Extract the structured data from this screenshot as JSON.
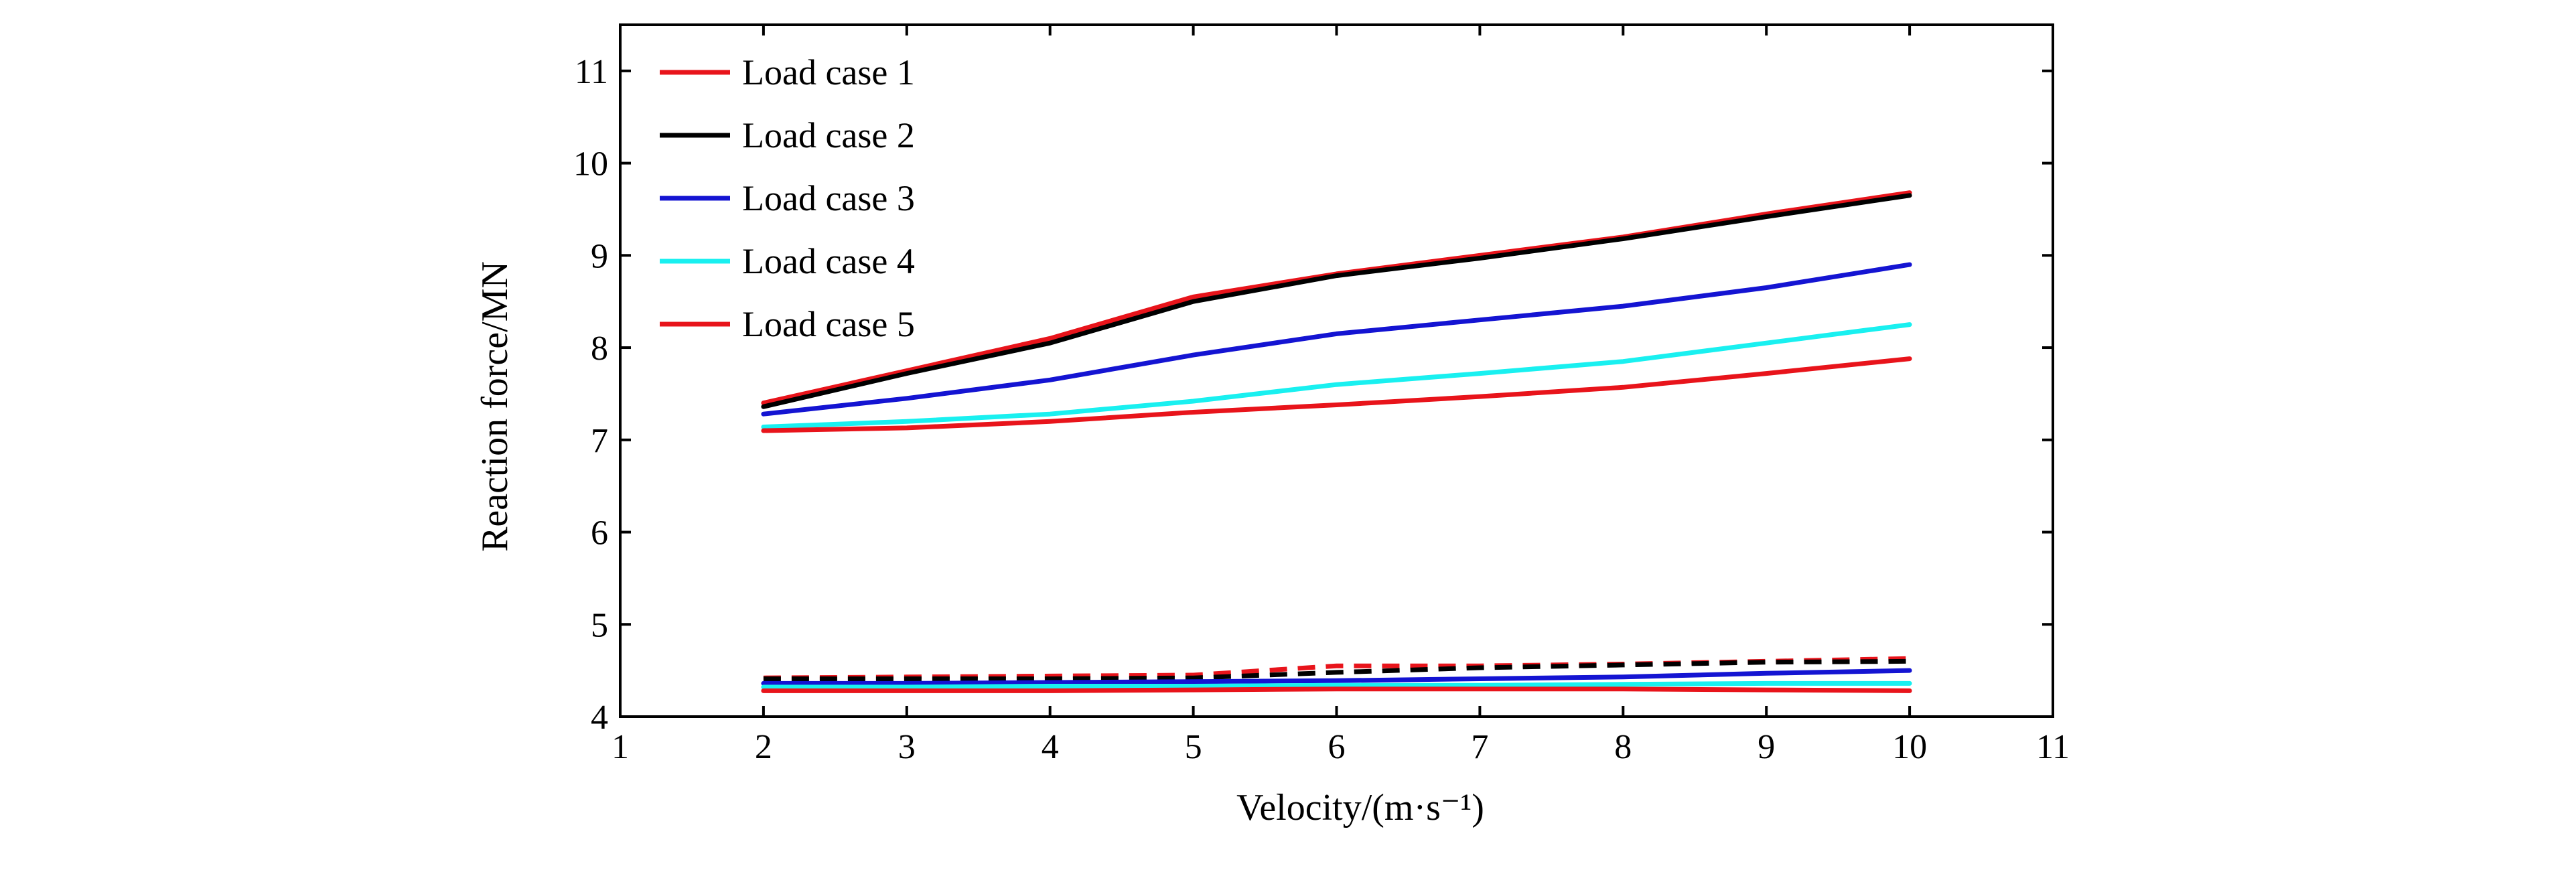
{
  "chart_data": {
    "type": "line",
    "title": "",
    "xlabel": "Velocity/(m·s⁻¹)",
    "ylabel": "Reaction force/MN",
    "xlim": [
      1,
      11
    ],
    "ylim": [
      4,
      11.5
    ],
    "xticks": [
      "1",
      "2",
      "3",
      "4",
      "5",
      "6",
      "7",
      "8",
      "9",
      "10",
      "11"
    ],
    "yticks": [
      "4",
      "5",
      "6",
      "7",
      "8",
      "9",
      "10",
      "11"
    ],
    "grid": false,
    "legend_position": "top-left",
    "x": [
      2,
      3,
      4,
      5,
      6,
      7,
      8,
      9,
      10
    ],
    "series": [
      {
        "name": "Load case 1",
        "color": "#e8141b",
        "style": "solid",
        "values": [
          7.4,
          7.75,
          8.1,
          8.55,
          8.8,
          9.0,
          9.2,
          9.45,
          9.68
        ]
      },
      {
        "name": "Load case 2",
        "color": "#000000",
        "style": "solid",
        "values": [
          7.36,
          7.72,
          8.05,
          8.5,
          8.78,
          8.97,
          9.18,
          9.42,
          9.65
        ]
      },
      {
        "name": "Load case 3",
        "color": "#1414d2",
        "style": "solid",
        "values": [
          7.28,
          7.45,
          7.65,
          7.92,
          8.15,
          8.3,
          8.45,
          8.65,
          8.9
        ]
      },
      {
        "name": "Load case 4",
        "color": "#19f0f0",
        "style": "solid",
        "values": [
          7.14,
          7.2,
          7.28,
          7.42,
          7.6,
          7.72,
          7.85,
          8.05,
          8.25
        ]
      },
      {
        "name": "Load case 5",
        "color": "#e8141b",
        "style": "solid",
        "values": [
          7.1,
          7.13,
          7.2,
          7.3,
          7.38,
          7.47,
          7.57,
          7.72,
          7.88
        ]
      },
      {
        "name": "",
        "color": "#e8141b",
        "style": "dashed",
        "values": [
          4.42,
          4.43,
          4.44,
          4.45,
          4.55,
          4.55,
          4.57,
          4.6,
          4.63
        ]
      },
      {
        "name": "",
        "color": "#000000",
        "style": "dashed",
        "values": [
          4.41,
          4.41,
          4.41,
          4.42,
          4.48,
          4.53,
          4.56,
          4.59,
          4.6
        ]
      },
      {
        "name": "",
        "color": "#1414d2",
        "style": "solid",
        "values": [
          4.36,
          4.36,
          4.37,
          4.38,
          4.39,
          4.41,
          4.43,
          4.47,
          4.5
        ]
      },
      {
        "name": "",
        "color": "#19f0f0",
        "style": "solid",
        "values": [
          4.32,
          4.32,
          4.33,
          4.33,
          4.34,
          4.34,
          4.35,
          4.36,
          4.36
        ]
      },
      {
        "name": "",
        "color": "#e8141b",
        "style": "solid",
        "values": [
          4.28,
          4.28,
          4.28,
          4.29,
          4.3,
          4.3,
          4.3,
          4.29,
          4.28
        ]
      }
    ]
  }
}
